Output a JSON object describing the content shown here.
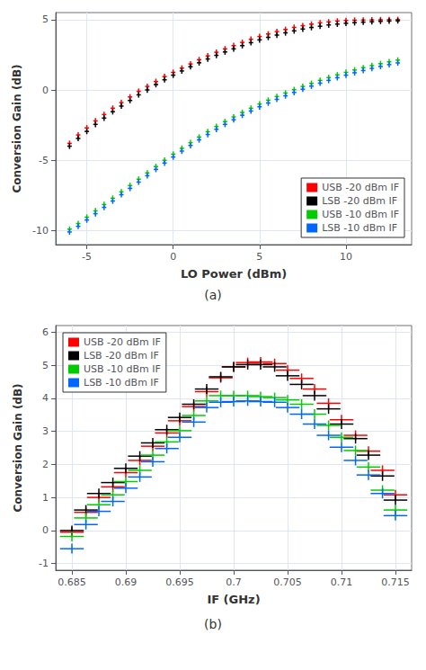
{
  "chart_data": [
    {
      "type": "scatter",
      "title": "(a)",
      "xlabel": "LO Power (dBm)",
      "ylabel": "Conversion Gain (dB)",
      "xlim": [
        -6.8,
        13.8
      ],
      "ylim": [
        -11,
        5.5
      ],
      "xticks": [
        -5,
        0,
        5,
        10
      ],
      "yticks": [
        -10,
        -5,
        0,
        5
      ],
      "grid": true,
      "legend": "lower right",
      "xerr": 0.13,
      "yerr": 0.2,
      "x": [
        -6.0,
        -5.5,
        -5.0,
        -4.5,
        -4.0,
        -3.5,
        -3.0,
        -2.5,
        -2.0,
        -1.5,
        -1.0,
        -0.5,
        0.0,
        0.5,
        1.0,
        1.5,
        2.0,
        2.5,
        3.0,
        3.5,
        4.0,
        4.5,
        5.0,
        5.5,
        6.0,
        6.5,
        7.0,
        7.5,
        8.0,
        8.5,
        9.0,
        9.5,
        10.0,
        10.5,
        11.0,
        11.5,
        12.0,
        12.5,
        13.0
      ],
      "series": [
        {
          "name": "USB -20 dBm IF",
          "color": "#ff0000",
          "values": [
            -3.8,
            -3.2,
            -2.7,
            -2.2,
            -1.75,
            -1.3,
            -0.9,
            -0.5,
            -0.1,
            0.25,
            0.6,
            0.95,
            1.25,
            1.55,
            1.85,
            2.15,
            2.42,
            2.68,
            2.92,
            3.15,
            3.38,
            3.6,
            3.8,
            3.98,
            4.15,
            4.3,
            4.45,
            4.57,
            4.68,
            4.77,
            4.84,
            4.9,
            4.94,
            4.96,
            4.97,
            4.98,
            4.99,
            5.0,
            5.0
          ]
        },
        {
          "name": "LSB -20 dBm IF",
          "color": "#000000",
          "values": [
            -4.0,
            -3.45,
            -2.95,
            -2.45,
            -2.0,
            -1.55,
            -1.15,
            -0.75,
            -0.35,
            0.0,
            0.38,
            0.72,
            1.05,
            1.35,
            1.65,
            1.93,
            2.2,
            2.46,
            2.7,
            2.92,
            3.15,
            3.36,
            3.56,
            3.74,
            3.9,
            4.06,
            4.2,
            4.33,
            4.44,
            4.53,
            4.62,
            4.68,
            4.74,
            4.78,
            4.82,
            4.85,
            4.88,
            4.9,
            4.92
          ]
        },
        {
          "name": "USB -10 dBm IF",
          "color": "#00cc00",
          "values": [
            -9.9,
            -9.5,
            -9.05,
            -8.6,
            -8.15,
            -7.7,
            -7.25,
            -6.8,
            -6.35,
            -5.9,
            -5.45,
            -5.0,
            -4.57,
            -4.15,
            -3.75,
            -3.35,
            -2.97,
            -2.6,
            -2.25,
            -1.92,
            -1.6,
            -1.3,
            -1.0,
            -0.73,
            -0.47,
            -0.22,
            0.02,
            0.25,
            0.47,
            0.68,
            0.88,
            1.07,
            1.25,
            1.42,
            1.58,
            1.73,
            1.87,
            2.0,
            2.12
          ]
        },
        {
          "name": "LSB -10 dBm IF",
          "color": "#0066ff",
          "values": [
            -10.1,
            -9.7,
            -9.25,
            -8.8,
            -8.35,
            -7.9,
            -7.45,
            -7.0,
            -6.55,
            -6.1,
            -5.65,
            -5.2,
            -4.77,
            -4.35,
            -3.95,
            -3.55,
            -3.17,
            -2.8,
            -2.45,
            -2.12,
            -1.8,
            -1.5,
            -1.2,
            -0.93,
            -0.67,
            -0.42,
            -0.18,
            0.05,
            0.27,
            0.48,
            0.68,
            0.87,
            1.05,
            1.22,
            1.38,
            1.53,
            1.67,
            1.8,
            1.92
          ]
        }
      ]
    },
    {
      "type": "scatter",
      "title": "(b)",
      "xlabel": "IF (GHz)",
      "ylabel": "Conversion Gain (dB)",
      "xlim": [
        0.6835,
        0.7165
      ],
      "ylim": [
        -1.2,
        6.2
      ],
      "xticks": [
        0.685,
        0.69,
        0.695,
        0.7,
        0.705,
        0.71,
        0.715
      ],
      "yticks": [
        -1,
        0,
        1,
        2,
        3,
        4,
        5,
        6
      ],
      "grid": true,
      "legend": "upper left",
      "xerr": 0.0011,
      "yerr": 0.15,
      "x": [
        0.685,
        0.6863,
        0.6875,
        0.6888,
        0.69,
        0.6913,
        0.6925,
        0.6938,
        0.695,
        0.6963,
        0.6975,
        0.6988,
        0.7,
        0.7013,
        0.7025,
        0.7038,
        0.705,
        0.7063,
        0.7075,
        0.7088,
        0.71,
        0.7113,
        0.7125,
        0.7138,
        0.715
      ],
      "series": [
        {
          "name": "USB -20 dBm IF",
          "color": "#ff0000",
          "values": [
            -0.05,
            0.55,
            1.0,
            1.32,
            1.75,
            2.12,
            2.55,
            2.95,
            3.32,
            3.75,
            4.2,
            4.62,
            4.95,
            5.08,
            5.1,
            5.05,
            4.85,
            4.6,
            4.28,
            3.85,
            3.35,
            2.88,
            2.4,
            1.82,
            1.08
          ]
        },
        {
          "name": "LSB -20 dBm IF",
          "color": "#000000",
          "values": [
            0.0,
            0.62,
            1.12,
            1.45,
            1.88,
            2.25,
            2.65,
            3.05,
            3.42,
            3.82,
            4.28,
            4.65,
            4.95,
            5.02,
            5.02,
            4.95,
            4.68,
            4.42,
            4.08,
            3.68,
            3.22,
            2.78,
            2.28,
            1.65,
            0.92
          ]
        },
        {
          "name": "USB -10 dBm IF",
          "color": "#00cc00",
          "values": [
            -0.18,
            0.38,
            0.78,
            1.08,
            1.48,
            1.82,
            2.28,
            2.68,
            3.02,
            3.48,
            3.92,
            4.08,
            4.08,
            4.08,
            4.05,
            4.02,
            3.95,
            3.82,
            3.52,
            3.18,
            2.82,
            2.42,
            1.92,
            1.22,
            0.62
          ]
        },
        {
          "name": "LSB -10 dBm IF",
          "color": "#0066ff",
          "values": [
            -0.55,
            0.18,
            0.58,
            0.88,
            1.28,
            1.62,
            2.08,
            2.48,
            2.82,
            3.28,
            3.72,
            3.88,
            3.9,
            3.92,
            3.9,
            3.88,
            3.72,
            3.52,
            3.22,
            2.88,
            2.52,
            2.12,
            1.68,
            1.12,
            0.45
          ]
        }
      ]
    }
  ]
}
